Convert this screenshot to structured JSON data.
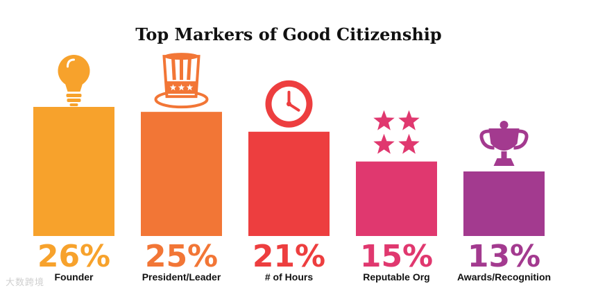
{
  "chart_data": {
    "type": "bar",
    "title": "Top Markers of Good Citizenship",
    "categories": [
      "Founder",
      "President/Leader",
      "# of Hours",
      "Reputable Org",
      "Awards/Recognition"
    ],
    "values": [
      26,
      25,
      21,
      15,
      13
    ],
    "value_labels": [
      "26%",
      "25%",
      "21%",
      "15%",
      "13%"
    ],
    "colors": [
      "#f7a22c",
      "#f27636",
      "#ed3e3f",
      "#e0386f",
      "#a33a8f"
    ],
    "icons": [
      "lightbulb-icon",
      "uncle-sam-hat-icon",
      "clock-icon",
      "stars-icon",
      "trophy-icon"
    ],
    "ylim": [
      0,
      26
    ],
    "grid": false,
    "legend": "none"
  },
  "watermark": "大数跨境"
}
